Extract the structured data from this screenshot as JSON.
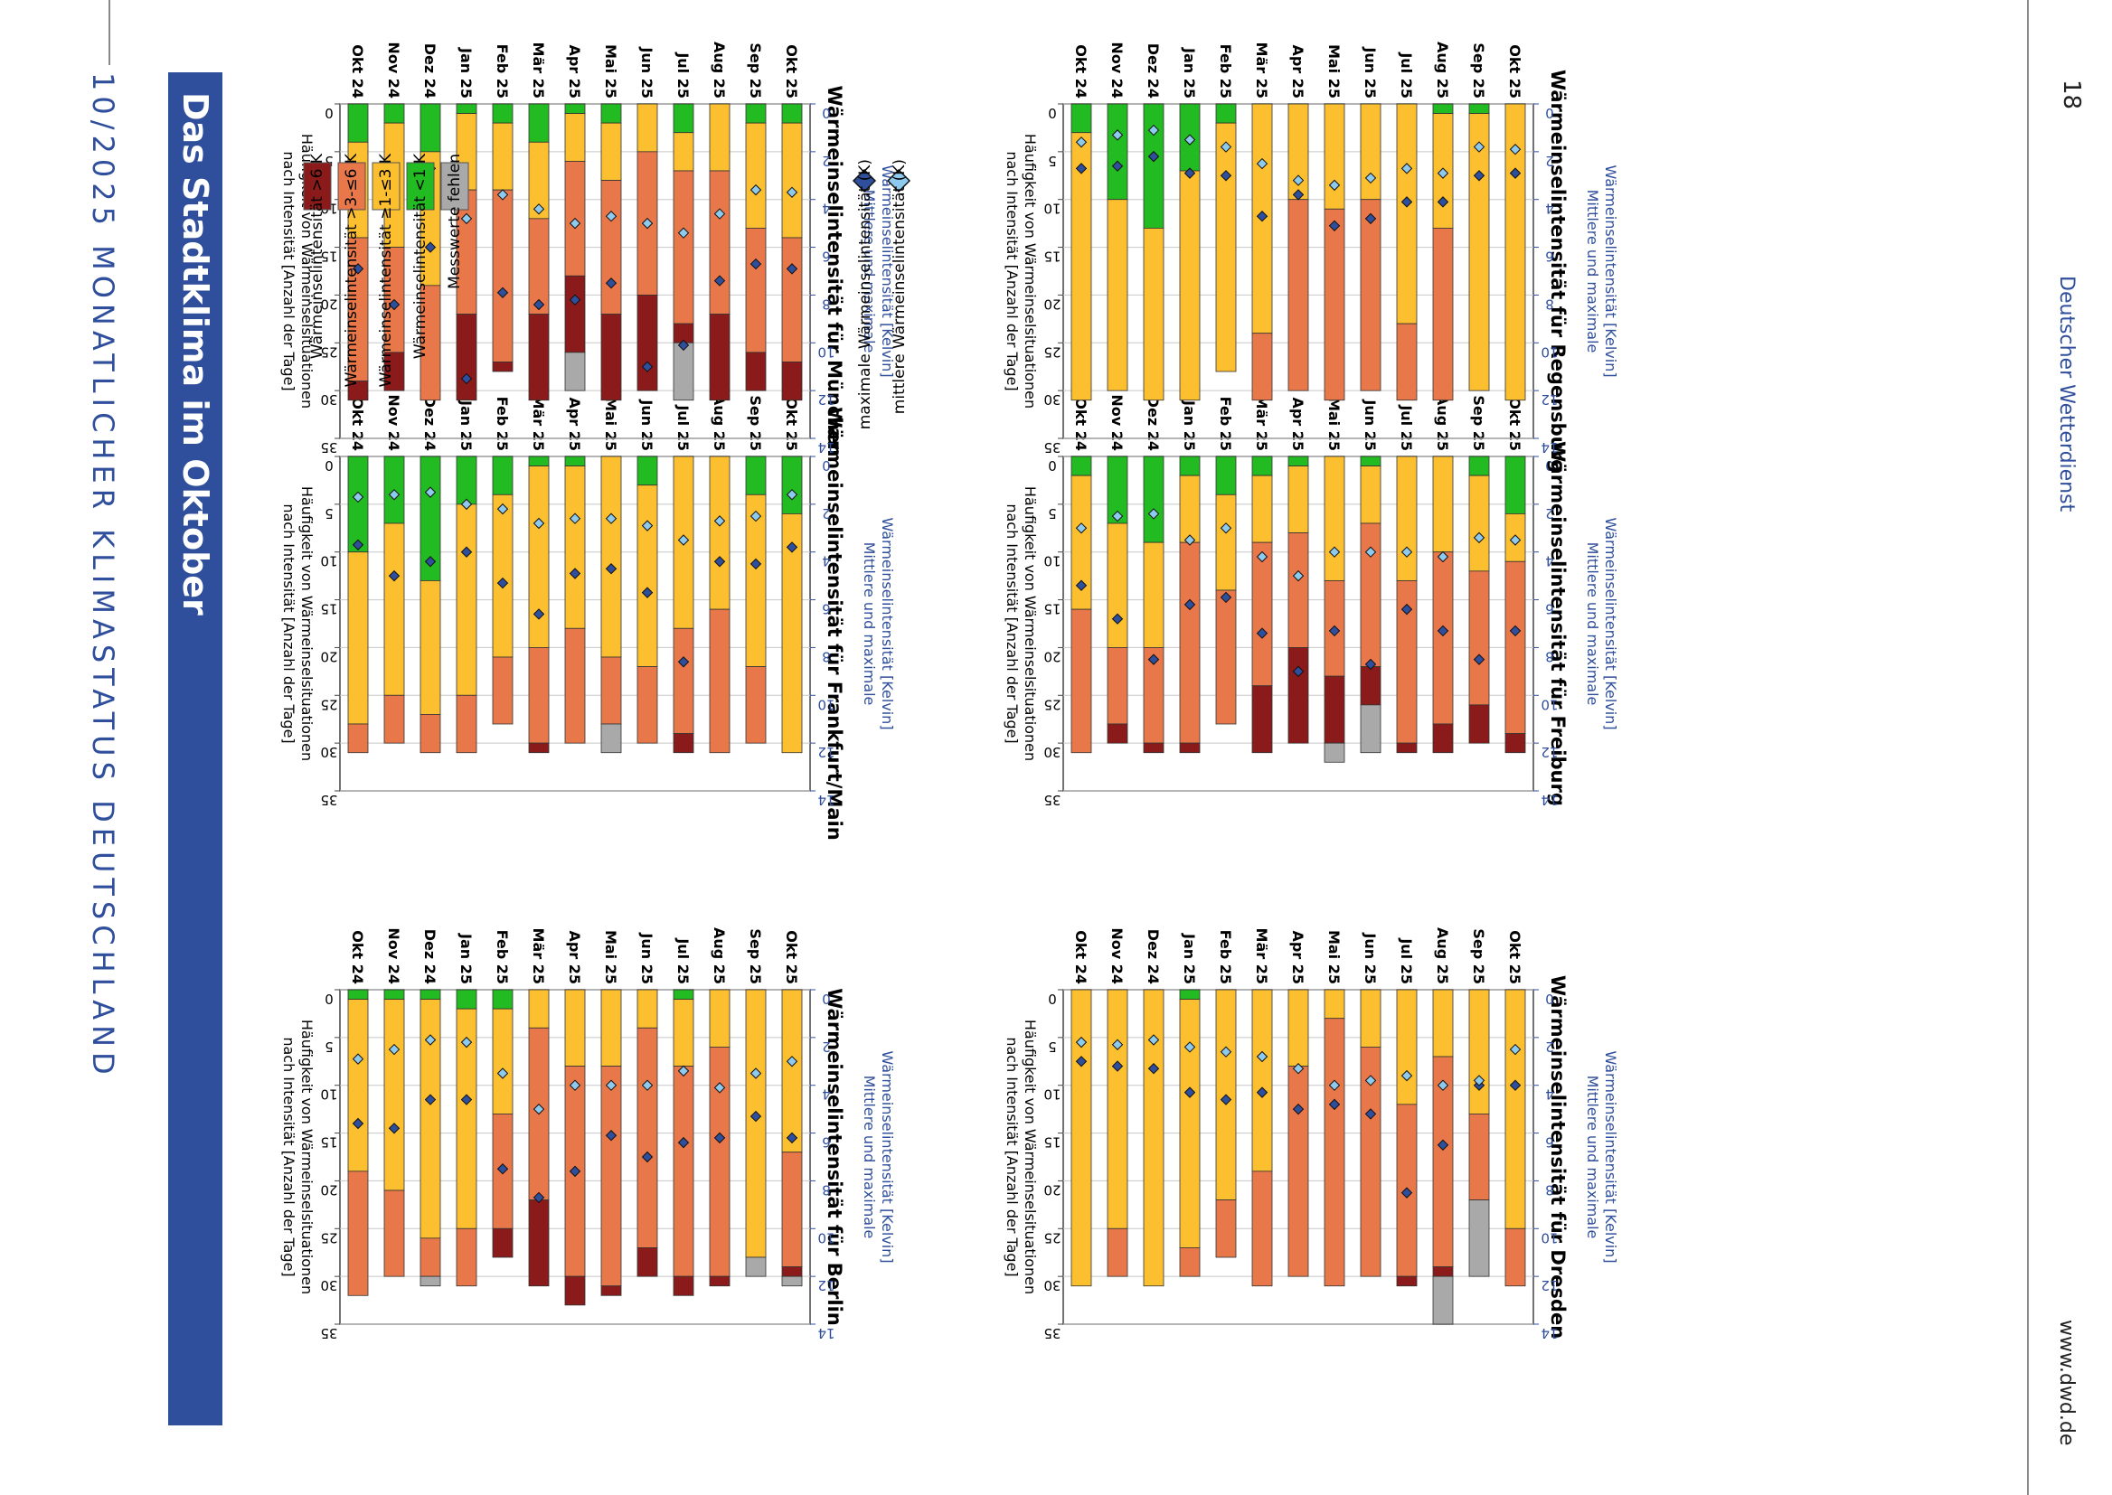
{
  "header": {
    "title": "10/2025 MONATLICHER KLIMASTATUS DEUTSCHLAND"
  },
  "section": {
    "title": "Das Stadtklima im Oktober"
  },
  "footer": {
    "page_number": "18",
    "publisher": "Deutscher Wetterdienst",
    "url": "www.dwd.de"
  },
  "colors": {
    "gt6": "#8b1a1a",
    "gt3": "#e8784a",
    "ge1": "#fbbf2f",
    "lt1": "#22bb22",
    "missing": "#a9a9a9",
    "axis_blue": "#2f4e9c",
    "max_marker": "#2f4e9c",
    "mean_marker": "#8ec9ee"
  },
  "chart_common": {
    "top_title": "Häufigkeit von Wärmeinselsituationen nach Intensität [Anzahl der Tage]",
    "bottom_title": "Mittlere und maximale Wärmeinselintensität [Kelvin]",
    "top_ticks": [
      "0",
      "5",
      "10",
      "15",
      "20",
      "25",
      "30",
      "35"
    ],
    "bottom_ticks": [
      "0",
      "2",
      "4",
      "6",
      "8",
      "10",
      "12",
      "14"
    ],
    "months": [
      "Okt 24",
      "Nov 24",
      "Dez 24",
      "Jan 25",
      "Feb 25",
      "Mär 25",
      "Apr 25",
      "Mai 25",
      "Jun 25",
      "Jul 25",
      "Aug 25",
      "Sep 25",
      "Okt 25"
    ]
  },
  "chart_data": [
    {
      "type": "bar",
      "stacked": true,
      "city": "Wärmeinselintensität für Berlin",
      "xlim_days": [
        0,
        35
      ],
      "xlim_kelvin": [
        0,
        14
      ],
      "series_order": [
        "lt1",
        "ge1",
        "gt3",
        "gt6",
        "missing"
      ],
      "counts": [
        [
          1,
          18,
          13,
          0,
          0
        ],
        [
          1,
          20,
          9,
          0,
          0
        ],
        [
          1,
          25,
          4,
          0,
          1
        ],
        [
          2,
          23,
          6,
          0,
          0
        ],
        [
          2,
          11,
          12,
          3,
          0
        ],
        [
          0,
          4,
          18,
          9,
          0
        ],
        [
          0,
          8,
          22,
          3,
          0
        ],
        [
          0,
          8,
          23,
          1,
          0
        ],
        [
          0,
          4,
          23,
          3,
          0
        ],
        [
          1,
          7,
          22,
          2,
          0
        ],
        [
          0,
          6,
          24,
          1,
          0
        ],
        [
          0,
          28,
          0,
          0,
          2
        ],
        [
          0,
          17,
          12,
          1,
          1
        ]
      ],
      "mean": [
        2.9,
        2.5,
        2.1,
        2.2,
        3.5,
        5.0,
        4.0,
        4.0,
        4.0,
        3.4,
        4.1,
        3.5,
        3.0
      ],
      "max": [
        5.6,
        5.8,
        4.6,
        4.6,
        7.5,
        8.7,
        7.6,
        6.1,
        7.0,
        6.4,
        6.2,
        5.3,
        6.2
      ]
    },
    {
      "type": "bar",
      "stacked": true,
      "city": "Wärmeinselintensität für Dresden",
      "xlim_days": [
        0,
        35
      ],
      "xlim_kelvin": [
        0,
        14
      ],
      "series_order": [
        "lt1",
        "ge1",
        "gt3",
        "gt6",
        "missing"
      ],
      "counts": [
        [
          0,
          31,
          0,
          0,
          0
        ],
        [
          0,
          25,
          5,
          0,
          0
        ],
        [
          0,
          31,
          0,
          0,
          0
        ],
        [
          1,
          26,
          3,
          0,
          0
        ],
        [
          0,
          22,
          6,
          0,
          0
        ],
        [
          0,
          19,
          12,
          0,
          0
        ],
        [
          0,
          8,
          22,
          0,
          0
        ],
        [
          0,
          3,
          28,
          0,
          0
        ],
        [
          0,
          6,
          24,
          0,
          0
        ],
        [
          0,
          12,
          18,
          1,
          0
        ],
        [
          0,
          7,
          22,
          1,
          5
        ],
        [
          0,
          13,
          9,
          0,
          8
        ],
        [
          0,
          25,
          6,
          0,
          0
        ]
      ],
      "mean": [
        2.2,
        2.3,
        2.1,
        2.4,
        2.6,
        2.8,
        3.3,
        4.0,
        3.8,
        3.6,
        4.0,
        3.8,
        2.5
      ],
      "max": [
        3.0,
        3.2,
        3.3,
        4.3,
        4.6,
        4.3,
        5.0,
        4.8,
        5.2,
        8.5,
        6.5,
        4.0,
        4.0
      ]
    },
    {
      "type": "bar",
      "stacked": true,
      "city": "Wärmeinselintensität für Frankfurt/Main",
      "xlim_days": [
        0,
        35
      ],
      "xlim_kelvin": [
        0,
        14
      ],
      "series_order": [
        "lt1",
        "ge1",
        "gt3",
        "gt6",
        "missing"
      ],
      "counts": [
        [
          10,
          18,
          3,
          0,
          0
        ],
        [
          7,
          18,
          5,
          0,
          0
        ],
        [
          13,
          14,
          4,
          0,
          0
        ],
        [
          5,
          20,
          6,
          0,
          0
        ],
        [
          4,
          17,
          7,
          0,
          0
        ],
        [
          1,
          19,
          10,
          1,
          0
        ],
        [
          1,
          17,
          12,
          0,
          0
        ],
        [
          0,
          21,
          7,
          0,
          3
        ],
        [
          3,
          19,
          8,
          0,
          0
        ],
        [
          0,
          18,
          11,
          2,
          0
        ],
        [
          0,
          16,
          15,
          0,
          0
        ],
        [
          4,
          18,
          8,
          0,
          0
        ],
        [
          6,
          25,
          0,
          0,
          0
        ]
      ],
      "mean": [
        1.7,
        1.6,
        1.5,
        2.0,
        2.2,
        2.8,
        2.6,
        2.6,
        2.9,
        3.5,
        2.7,
        2.5,
        1.6
      ],
      "max": [
        3.7,
        5.0,
        4.4,
        4.0,
        5.3,
        6.6,
        4.9,
        4.7,
        5.7,
        8.6,
        4.4,
        4.5,
        3.8
      ]
    },
    {
      "type": "bar",
      "stacked": true,
      "city": "Wärmeinselintensität für Freiburg",
      "xlim_days": [
        0,
        35
      ],
      "xlim_kelvin": [
        0,
        14
      ],
      "series_order": [
        "lt1",
        "ge1",
        "gt3",
        "gt6",
        "missing"
      ],
      "counts": [
        [
          2,
          14,
          15,
          0,
          0
        ],
        [
          7,
          13,
          8,
          2,
          0
        ],
        [
          9,
          11,
          10,
          1,
          0
        ],
        [
          2,
          7,
          21,
          1,
          0
        ],
        [
          4,
          10,
          14,
          0,
          0
        ],
        [
          2,
          7,
          15,
          7,
          0
        ],
        [
          1,
          7,
          12,
          10,
          0
        ],
        [
          0,
          13,
          10,
          7,
          2
        ],
        [
          1,
          6,
          15,
          4,
          5
        ],
        [
          0,
          13,
          17,
          1,
          0
        ],
        [
          0,
          10,
          18,
          3,
          0
        ],
        [
          2,
          10,
          14,
          4,
          0
        ],
        [
          6,
          5,
          18,
          2,
          0
        ]
      ],
      "mean": [
        3.0,
        2.5,
        2.4,
        3.5,
        3.0,
        4.2,
        5.0,
        4.0,
        4.0,
        4.0,
        4.2,
        3.4,
        3.5
      ],
      "max": [
        5.4,
        6.8,
        8.5,
        6.2,
        5.9,
        7.4,
        9.0,
        7.3,
        8.7,
        6.4,
        7.3,
        8.5,
        7.3
      ]
    },
    {
      "type": "bar",
      "stacked": true,
      "city": "Wärmeinselintensität für München",
      "xlim_days": [
        0,
        35
      ],
      "xlim_kelvin": [
        0,
        14
      ],
      "series_order": [
        "lt1",
        "ge1",
        "gt3",
        "gt6",
        "missing"
      ],
      "counts": [
        [
          4,
          10,
          15,
          2,
          0
        ],
        [
          2,
          13,
          11,
          4,
          0
        ],
        [
          5,
          14,
          12,
          0,
          0
        ],
        [
          1,
          8,
          13,
          9,
          0
        ],
        [
          2,
          7,
          18,
          1,
          0
        ],
        [
          4,
          8,
          10,
          9,
          0
        ],
        [
          1,
          5,
          12,
          8,
          4
        ],
        [
          2,
          6,
          14,
          9,
          0
        ],
        [
          0,
          5,
          15,
          10,
          0
        ],
        [
          3,
          4,
          16,
          2,
          6
        ],
        [
          0,
          7,
          15,
          9,
          0
        ],
        [
          2,
          11,
          13,
          4,
          0
        ],
        [
          2,
          12,
          13,
          4,
          0
        ]
      ],
      "mean": [
        3.3,
        3.4,
        2.7,
        4.8,
        3.8,
        4.4,
        5.0,
        4.7,
        5.0,
        5.4,
        4.6,
        3.6,
        3.7
      ],
      "max": [
        6.9,
        8.4,
        6.0,
        11.5,
        7.9,
        8.4,
        8.2,
        7.5,
        11.0,
        10.1,
        7.4,
        6.7,
        6.9
      ]
    },
    {
      "type": "bar",
      "stacked": true,
      "city": "Wärmeinselintensität für Regensburg",
      "xlim_days": [
        0,
        35
      ],
      "xlim_kelvin": [
        0,
        14
      ],
      "series_order": [
        "lt1",
        "ge1",
        "gt3",
        "gt6",
        "missing"
      ],
      "counts": [
        [
          3,
          28,
          0,
          0,
          0
        ],
        [
          10,
          20,
          0,
          0,
          0
        ],
        [
          13,
          18,
          0,
          0,
          0
        ],
        [
          7,
          24,
          0,
          0,
          0
        ],
        [
          2,
          26,
          0,
          0,
          0
        ],
        [
          0,
          24,
          7,
          0,
          0
        ],
        [
          0,
          10,
          20,
          0,
          0
        ],
        [
          0,
          11,
          20,
          0,
          0
        ],
        [
          0,
          10,
          20,
          0,
          0
        ],
        [
          0,
          23,
          8,
          0,
          0
        ],
        [
          1,
          12,
          18,
          0,
          0
        ],
        [
          1,
          29,
          0,
          0,
          0
        ],
        [
          0,
          31,
          0,
          0,
          0
        ]
      ],
      "mean": [
        1.6,
        1.3,
        1.1,
        1.5,
        1.8,
        2.5,
        3.2,
        3.4,
        3.1,
        2.7,
        2.9,
        1.8,
        1.9
      ],
      "max": [
        2.7,
        2.6,
        2.2,
        2.9,
        3.0,
        4.7,
        3.8,
        5.1,
        4.8,
        4.1,
        4.1,
        3.0,
        2.9
      ]
    }
  ],
  "legend": {
    "items": [
      {
        "key": "gt6",
        "label": "Wärmeinselintensität >6 K"
      },
      {
        "key": "gt3",
        "label": "Wärmeinselintensität >3-≤6 K"
      },
      {
        "key": "ge1",
        "label": "Wärmeinselintensität ≥1-≤3 K"
      },
      {
        "key": "lt1",
        "label": "Wärmeinselintensität <1 K"
      },
      {
        "key": "missing",
        "label": "Messwerte fehlen"
      }
    ],
    "markers": [
      {
        "key": "max",
        "label": "maximale Wärmeinselintensität (K)"
      },
      {
        "key": "mean",
        "label": "mittlere Wärmeinselintensität (K)"
      }
    ]
  }
}
